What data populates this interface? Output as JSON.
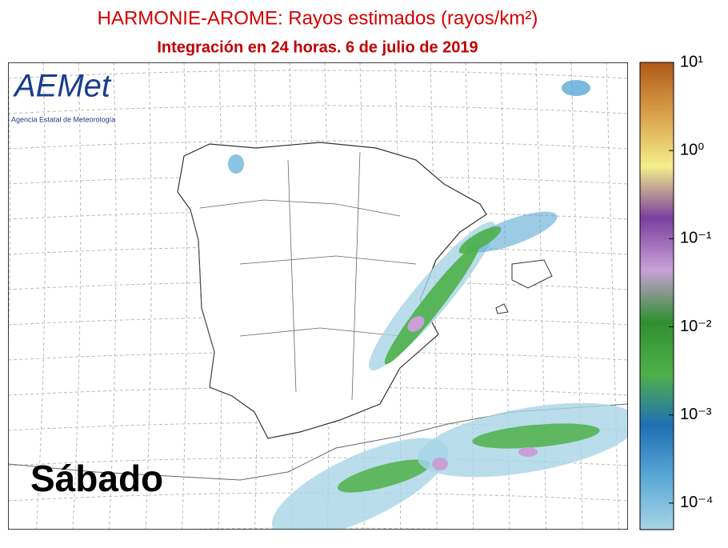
{
  "header": {
    "title": "HARMONIE-AROME: Rayos estimados (rayos/km²)",
    "subtitle": "Integración en 24 horas. 6 de julio de 2019"
  },
  "logo": {
    "name": "AEMet",
    "caption": "Agencia Estatal de Meteorología"
  },
  "day_label": "Sábado",
  "colorbar": {
    "scale": "log",
    "lim": [
      5e-05,
      10
    ],
    "colors": [
      "#a8d4e6",
      "#5aa9d6",
      "#1f6fb4",
      "#4fb04a",
      "#2f8f2f",
      "#c9a0d6",
      "#7a3f9e",
      "#f4ee8a",
      "#d9a04a",
      "#b05a1a"
    ],
    "ticks": [
      {
        "value": 10,
        "label": "10¹"
      },
      {
        "value": 1,
        "label": "10⁰"
      },
      {
        "value": 0.1,
        "label": "10⁻¹"
      },
      {
        "value": 0.01,
        "label": "10⁻²"
      },
      {
        "value": 0.001,
        "label": "10⁻³"
      },
      {
        "value": 0.0001,
        "label": "10⁻⁴"
      }
    ]
  }
}
